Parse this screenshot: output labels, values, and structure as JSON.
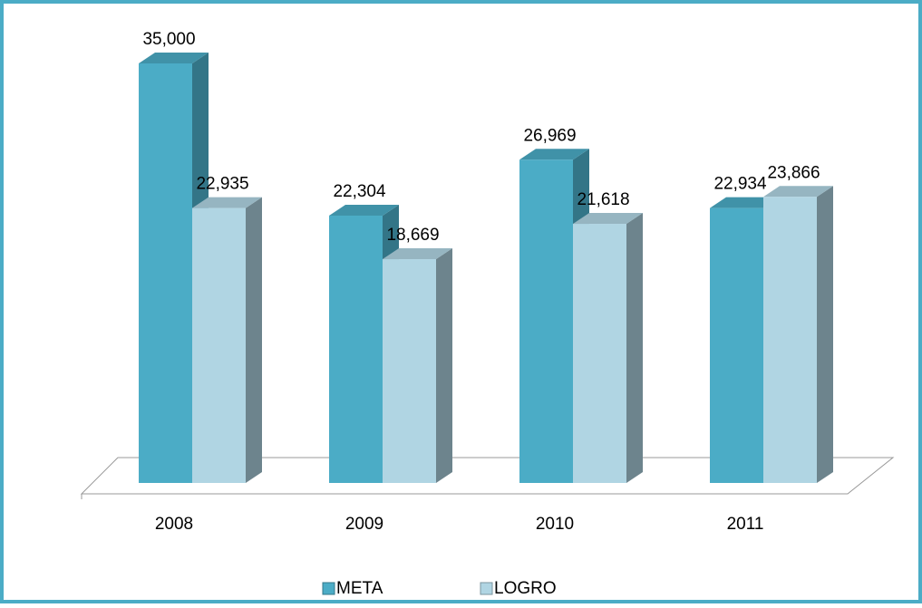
{
  "chart_data": {
    "type": "bar3d",
    "categories": [
      "2008",
      "2009",
      "2010",
      "2011"
    ],
    "series": [
      {
        "name": "META",
        "color": "#4bacc6",
        "values": [
          35000,
          22304,
          26969,
          22934
        ],
        "value_labels": [
          "35,000",
          "22,304",
          "26,969",
          "22,934"
        ]
      },
      {
        "name": "LOGRO",
        "color": "#b0d5e3",
        "values": [
          22935,
          18669,
          21618,
          23866
        ],
        "value_labels": [
          "22,935",
          "18,669",
          "21,618",
          "23,866"
        ]
      }
    ],
    "legend": "bottom"
  }
}
